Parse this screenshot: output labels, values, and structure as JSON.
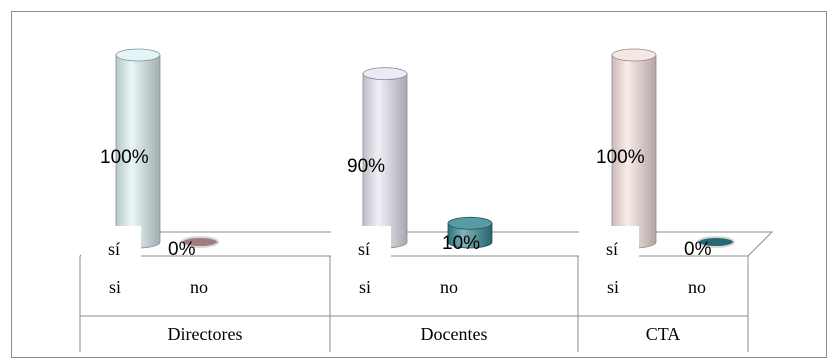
{
  "chart_data": {
    "type": "bar",
    "style": "3d-cylinder",
    "groups": [
      {
        "name": "Directores",
        "bars": [
          {
            "tick": "si",
            "label": "sí",
            "value": 100,
            "value_label": "100%",
            "color": "#dff3f6"
          },
          {
            "tick": "no",
            "label": "",
            "value": 0,
            "value_label": "0%",
            "color": "#b48a8a"
          }
        ]
      },
      {
        "name": "Docentes",
        "bars": [
          {
            "tick": "si",
            "label": "sí",
            "value": 90,
            "value_label": "90%",
            "color": "#ebe6f3"
          },
          {
            "tick": "no",
            "label": "",
            "value": 10,
            "value_label": "10%",
            "color": "#3a8a93"
          }
        ]
      },
      {
        "name": "CTA",
        "bars": [
          {
            "tick": "si",
            "label": "sí",
            "value": 100,
            "value_label": "100%",
            "color": "#f6e3df"
          },
          {
            "tick": "no",
            "label": "",
            "value": 0,
            "value_label": "0%",
            "color": "#2e7480"
          }
        ]
      }
    ],
    "ylim": [
      0,
      100
    ],
    "grid": false,
    "legend": "none"
  }
}
